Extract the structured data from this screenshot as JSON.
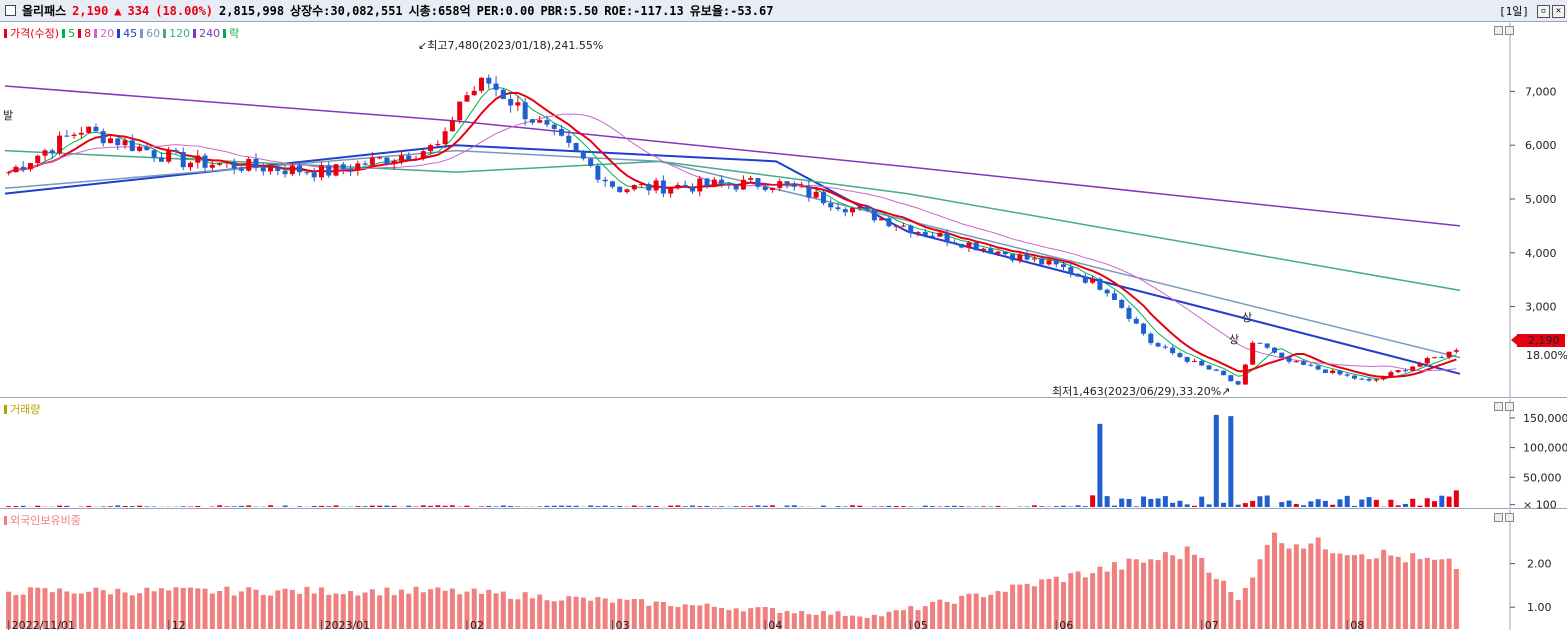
{
  "header": {
    "name": "올리패스",
    "price": "2,190",
    "arrow": "▲",
    "change": "334",
    "change_pct": "(18.00%)",
    "volume": "2,815,998",
    "listed": "상장수:30,082,551",
    "mcap": "시총:658억",
    "per": "PER:0.00",
    "pbr": "PBR:5.50",
    "roe": "ROE:-117.13",
    "float": "유보율:-53.67",
    "period": "[1일]"
  },
  "price_panel": {
    "legend": {
      "price": "가격(수정)",
      "ma5": "5",
      "ma8": "8",
      "ma20": "20",
      "ma45": "45",
      "ma60": "60",
      "ma120": "120",
      "ma240": "240",
      "fall": "락"
    },
    "yticks": [
      "7,000",
      "6,000",
      "5,000",
      "4,000",
      "3,000"
    ],
    "high_annotation": "최고7,480(2023/01/18),241.55%",
    "low_annotation": "최저1,463(2023/06/29),33.20%",
    "left_label": "발",
    "event_labels": [
      "상",
      "상"
    ],
    "price_tag": "2,190",
    "pct_tag": "18.00%"
  },
  "volume_panel": {
    "legend": "거래량",
    "yticks": [
      "150,000",
      "100,000",
      "50,000",
      "× 100"
    ]
  },
  "foreign_panel": {
    "legend": "외국인보유비중",
    "yticks": [
      "2.00",
      "1.00"
    ]
  },
  "xaxis": {
    "ticks": [
      "2022/11/01",
      "12",
      "2023/01",
      "02",
      "03",
      "04",
      "05",
      "06",
      "07",
      "08"
    ]
  },
  "colors": {
    "up": "#e60012",
    "down": "#1f5fd0",
    "ma5": "#00b050",
    "ma8": "#e60012",
    "ma20": "#cc66cc",
    "ma45": "#1f3fd0",
    "ma60": "#7799bb",
    "ma120": "#44aa88",
    "ma240": "#8833bb",
    "foreign": "#f08080"
  },
  "chart_data": {
    "type": "candlestick",
    "title": "올리패스",
    "x_range": [
      "2022/11/01",
      "2023/08"
    ],
    "price_ylim": [
      1300,
      7900
    ],
    "price_anchors": [
      {
        "x": "2022/11/01",
        "close": 5500
      },
      {
        "x": "2022/11/mid",
        "close": 6300
      },
      {
        "x": "2022/12",
        "close": 5500
      },
      {
        "x": "2023/01",
        "close": 6000
      },
      {
        "x": "2023/01/18",
        "close": 7200
      },
      {
        "x": "2023/02",
        "close": 5200
      },
      {
        "x": "2023/03",
        "close": 5300
      },
      {
        "x": "2023/04",
        "close": 4400
      },
      {
        "x": "2023/05",
        "close": 3700
      },
      {
        "x": "2023/06",
        "close": 2000
      },
      {
        "x": "2023/06/29",
        "close": 1500
      },
      {
        "x": "2023/07",
        "close": 2500
      },
      {
        "x": "2023/08",
        "close": 1800
      },
      {
        "x": "last",
        "close": 2190
      }
    ],
    "high": {
      "value": 7480,
      "date": "2023/01/18"
    },
    "low": {
      "value": 1463,
      "date": "2023/06/29"
    },
    "moving_averages": [
      {
        "name": "45",
        "points": [
          [
            0,
            5100
          ],
          [
            0.31,
            6000
          ],
          [
            0.53,
            5700
          ],
          [
            0.62,
            4400
          ],
          [
            1.0,
            1750
          ]
        ]
      },
      {
        "name": "60",
        "points": [
          [
            0,
            5200
          ],
          [
            0.31,
            5900
          ],
          [
            0.45,
            5700
          ],
          [
            0.62,
            4600
          ],
          [
            1.0,
            2050
          ]
        ]
      },
      {
        "name": "120",
        "points": [
          [
            0,
            5900
          ],
          [
            0.31,
            5500
          ],
          [
            0.45,
            5700
          ],
          [
            0.62,
            5100
          ],
          [
            1.0,
            3300
          ]
        ]
      },
      {
        "name": "240",
        "points": [
          [
            0,
            7100
          ],
          [
            0.31,
            6450
          ],
          [
            0.62,
            5600
          ],
          [
            1.0,
            4500
          ]
        ]
      }
    ],
    "volume_ylim": [
      0,
      165000
    ],
    "volume_spikes": [
      {
        "x": "2023/06",
        "value": 140000
      },
      {
        "x": "2023/06/29",
        "value": 155000
      },
      {
        "x": "2023/07/01",
        "value": 153000
      },
      {
        "x": "last",
        "value": 28000
      }
    ],
    "foreign_ratio_ylim": [
      0.5,
      3.0
    ],
    "foreign_ratio_anchors": [
      [
        0,
        1.37
      ],
      [
        0.3,
        1.37
      ],
      [
        0.6,
        0.8
      ],
      [
        0.85,
        1.1
      ],
      [
        0.82,
        2.3
      ],
      [
        0.87,
        2.6
      ],
      [
        1.0,
        1.95
      ]
    ]
  }
}
